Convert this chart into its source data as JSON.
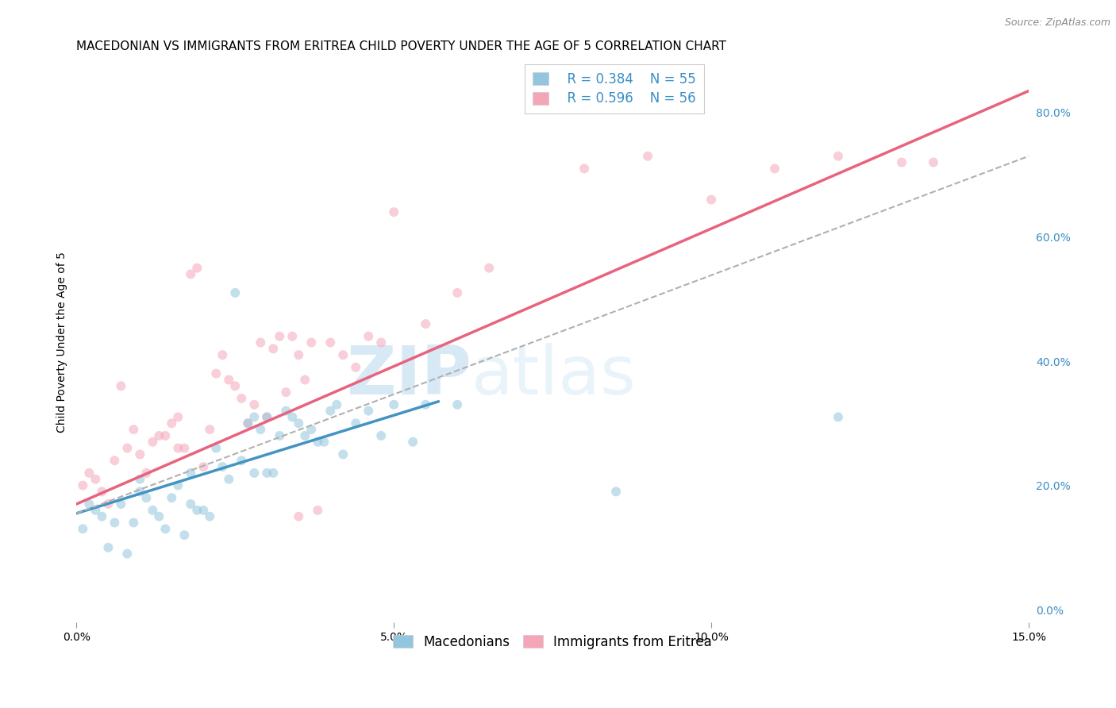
{
  "title": "MACEDONIAN VS IMMIGRANTS FROM ERITREA CHILD POVERTY UNDER THE AGE OF 5 CORRELATION CHART",
  "source": "Source: ZipAtlas.com",
  "ylabel": "Child Poverty Under the Age of 5",
  "xlim": [
    0.0,
    0.15
  ],
  "ylim": [
    -0.02,
    0.88
  ],
  "x_ticks": [
    0.0,
    0.05,
    0.1,
    0.15
  ],
  "x_tick_labels": [
    "0.0%",
    "5.0%",
    "10.0%",
    "15.0%"
  ],
  "y_ticks_right": [
    0.0,
    0.2,
    0.4,
    0.6,
    0.8
  ],
  "y_tick_labels_right": [
    "0.0%",
    "20.0%",
    "40.0%",
    "60.0%",
    "80.0%"
  ],
  "grid_color": "#d8d8d8",
  "background_color": "#ffffff",
  "macedonian_color": "#92c5de",
  "eritrea_color": "#f4a6b8",
  "macedonian_line_color": "#4393c3",
  "eritrea_line_color": "#e8637d",
  "dashed_line_color": "#b0b0b0",
  "legend_r_macedonian": "R = 0.384",
  "legend_n_macedonian": "N = 55",
  "legend_r_eritrea": "R = 0.596",
  "legend_n_eritrea": "N = 56",
  "label_macedonians": "Macedonians",
  "label_eritrea": "Immigrants from Eritrea",
  "macedonian_scatter": {
    "x": [
      0.001,
      0.002,
      0.003,
      0.004,
      0.005,
      0.006,
      0.007,
      0.008,
      0.009,
      0.01,
      0.01,
      0.011,
      0.012,
      0.013,
      0.014,
      0.015,
      0.016,
      0.017,
      0.018,
      0.018,
      0.019,
      0.02,
      0.021,
      0.022,
      0.023,
      0.024,
      0.025,
      0.026,
      0.027,
      0.028,
      0.028,
      0.029,
      0.03,
      0.03,
      0.031,
      0.032,
      0.033,
      0.034,
      0.035,
      0.036,
      0.037,
      0.038,
      0.039,
      0.04,
      0.041,
      0.042,
      0.044,
      0.046,
      0.048,
      0.05,
      0.053,
      0.055,
      0.06,
      0.085,
      0.12
    ],
    "y": [
      0.13,
      0.17,
      0.16,
      0.15,
      0.1,
      0.14,
      0.17,
      0.09,
      0.14,
      0.19,
      0.21,
      0.18,
      0.16,
      0.15,
      0.13,
      0.18,
      0.2,
      0.12,
      0.22,
      0.17,
      0.16,
      0.16,
      0.15,
      0.26,
      0.23,
      0.21,
      0.51,
      0.24,
      0.3,
      0.31,
      0.22,
      0.29,
      0.31,
      0.22,
      0.22,
      0.28,
      0.32,
      0.31,
      0.3,
      0.28,
      0.29,
      0.27,
      0.27,
      0.32,
      0.33,
      0.25,
      0.3,
      0.32,
      0.28,
      0.33,
      0.27,
      0.33,
      0.33,
      0.19,
      0.31
    ]
  },
  "eritrea_scatter": {
    "x": [
      0.001,
      0.002,
      0.003,
      0.004,
      0.005,
      0.006,
      0.007,
      0.008,
      0.009,
      0.01,
      0.011,
      0.012,
      0.013,
      0.014,
      0.015,
      0.016,
      0.016,
      0.017,
      0.018,
      0.019,
      0.02,
      0.021,
      0.022,
      0.023,
      0.024,
      0.025,
      0.026,
      0.027,
      0.028,
      0.029,
      0.03,
      0.031,
      0.032,
      0.033,
      0.034,
      0.035,
      0.035,
      0.036,
      0.037,
      0.038,
      0.04,
      0.042,
      0.044,
      0.046,
      0.048,
      0.05,
      0.055,
      0.06,
      0.065,
      0.08,
      0.09,
      0.1,
      0.11,
      0.12,
      0.13,
      0.135
    ],
    "y": [
      0.2,
      0.22,
      0.21,
      0.19,
      0.17,
      0.24,
      0.36,
      0.26,
      0.29,
      0.25,
      0.22,
      0.27,
      0.28,
      0.28,
      0.3,
      0.31,
      0.26,
      0.26,
      0.54,
      0.55,
      0.23,
      0.29,
      0.38,
      0.41,
      0.37,
      0.36,
      0.34,
      0.3,
      0.33,
      0.43,
      0.31,
      0.42,
      0.44,
      0.35,
      0.44,
      0.41,
      0.15,
      0.37,
      0.43,
      0.16,
      0.43,
      0.41,
      0.39,
      0.44,
      0.43,
      0.64,
      0.46,
      0.51,
      0.55,
      0.71,
      0.73,
      0.66,
      0.71,
      0.73,
      0.72,
      0.72
    ]
  },
  "macedonian_trendline": {
    "x": [
      0.0,
      0.057
    ],
    "y": [
      0.155,
      0.335
    ]
  },
  "eritrea_trendline": {
    "x": [
      0.0,
      0.15
    ],
    "y": [
      0.17,
      0.835
    ]
  },
  "dashed_trendline": {
    "x": [
      0.0,
      0.15
    ],
    "y": [
      0.155,
      0.73
    ]
  },
  "watermark_zip": "ZIP",
  "watermark_atlas": "atlas",
  "marker_size": 75,
  "marker_alpha": 0.55,
  "title_fontsize": 11,
  "axis_label_fontsize": 10,
  "tick_fontsize": 10,
  "legend_fontsize": 12,
  "source_fontsize": 9
}
